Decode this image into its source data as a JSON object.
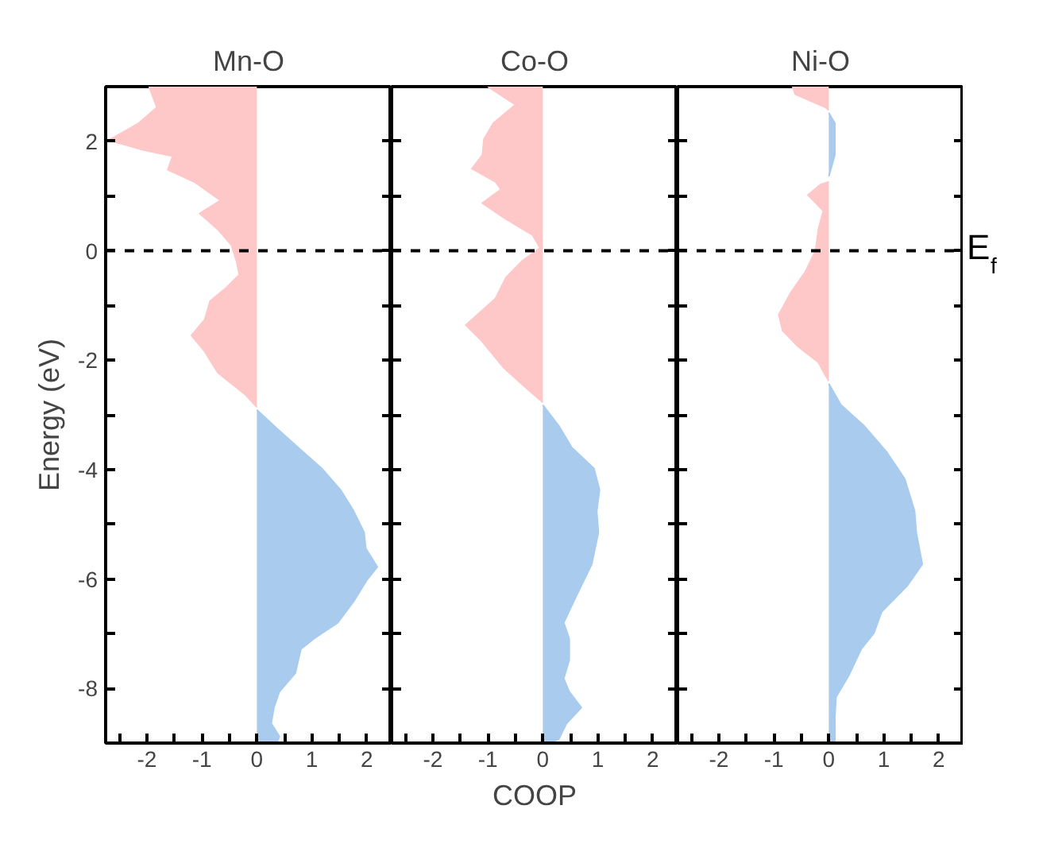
{
  "chart_data": [
    {
      "type": "area",
      "orientation": "horizontal",
      "title": "Mn-O",
      "ylabel": "Energy (eV)",
      "xlim": [
        -2.75,
        2.45
      ],
      "ylim": [
        -9,
        3
      ],
      "xticks": [
        {
          "value": -2.5,
          "label": null
        },
        -2,
        {
          "value": -1.5,
          "label": null
        },
        -1,
        {
          "value": -0.5,
          "label": null
        },
        0,
        {
          "value": 0.5,
          "label": null
        },
        1,
        {
          "value": 1.5,
          "label": null
        },
        2
      ],
      "yticks": [
        -8,
        {
          "value": -7,
          "label": null
        },
        -6,
        {
          "value": -5,
          "label": null
        },
        -4,
        {
          "value": -3,
          "label": null
        },
        -2,
        {
          "value": -1,
          "label": null
        },
        0,
        {
          "value": 1,
          "label": null
        },
        2
      ],
      "ref_lines": [
        {
          "axis": "y",
          "value": 0,
          "line_style": "dashed",
          "color": "#000000"
        }
      ],
      "series": [
        {
          "color": "#ffc8c8",
          "x": [
            3,
            2.62,
            2.33,
            2.02,
            1.84,
            1.73,
            1.48,
            1.26,
            0.92,
            0.68,
            0.39,
            0.1,
            -0.19,
            -0.44,
            -0.68,
            -0.92,
            -1.26,
            -1.55,
            -1.84,
            -2.23,
            -2.62,
            -2.86
          ],
          "values": [
            -1.96,
            -1.82,
            -2.15,
            -2.69,
            -2.06,
            -1.53,
            -1.62,
            -1.14,
            -0.66,
            -1.04,
            -0.71,
            -0.46,
            -0.37,
            -0.32,
            -0.56,
            -0.85,
            -0.95,
            -1.19,
            -0.95,
            -0.71,
            -0.22,
            0
          ]
        },
        {
          "color": "#a8cbee",
          "x": [
            -2.91,
            -3.2,
            -3.59,
            -3.98,
            -4.37,
            -4.76,
            -5.15,
            -5.44,
            -5.78,
            -6.02,
            -6.41,
            -6.8,
            -7.09,
            -7.28,
            -7.72,
            -8.06,
            -8.35,
            -8.64,
            -8.88,
            -9
          ],
          "values": [
            0,
            0.31,
            0.74,
            1.18,
            1.52,
            1.76,
            1.95,
            1.98,
            2.19,
            2.0,
            1.76,
            1.47,
            1.04,
            0.8,
            0.7,
            0.41,
            0.31,
            0.26,
            0.41,
            0.36
          ]
        }
      ]
    },
    {
      "type": "area",
      "orientation": "horizontal",
      "title": "Co-O",
      "xlabel": "COOP",
      "tick_labels": "x",
      "xlim": [
        -2.75,
        2.45
      ],
      "ylim": [
        -9,
        3
      ],
      "xticks": [
        {
          "value": -2.5,
          "label": null
        },
        -2,
        {
          "value": -1.5,
          "label": null
        },
        -1,
        {
          "value": -0.5,
          "label": null
        },
        0,
        {
          "value": 0.5,
          "label": null
        },
        1,
        {
          "value": 1.5,
          "label": null
        },
        2
      ],
      "yticks": [
        {
          "value": -8,
          "label": null
        },
        {
          "value": -7,
          "label": null
        },
        {
          "value": -6,
          "label": null
        },
        {
          "value": -5,
          "label": null
        },
        {
          "value": -4,
          "label": null
        },
        {
          "value": -3,
          "label": null
        },
        {
          "value": -2,
          "label": null
        },
        {
          "value": -1,
          "label": null
        },
        {
          "value": 0,
          "label": null
        },
        {
          "value": 1,
          "label": null
        },
        {
          "value": 2,
          "label": null
        }
      ],
      "ref_lines": [
        {
          "axis": "y",
          "value": 0,
          "line_style": "dashed",
          "color": "#000000"
        }
      ],
      "series": [
        {
          "color": "#ffc8c8",
          "x": [
            3,
            2.67,
            2.33,
            2.04,
            1.75,
            1.5,
            1.26,
            1.12,
            0.87,
            0.58,
            0.29,
            0.05,
            -0.19,
            -0.49,
            -0.87,
            -1.17,
            -1.36,
            -1.65,
            -2.14,
            -2.52,
            -2.77
          ],
          "values": [
            -1.0,
            -0.5,
            -0.9,
            -1.07,
            -1.1,
            -1.29,
            -0.86,
            -0.76,
            -1.1,
            -0.67,
            -0.19,
            -0.05,
            -0.38,
            -0.67,
            -0.86,
            -1.19,
            -1.4,
            -1.11,
            -0.71,
            -0.29,
            0
          ]
        },
        {
          "color": "#a8cbee",
          "x": [
            -2.82,
            -3.2,
            -3.59,
            -3.98,
            -4.37,
            -4.76,
            -5.15,
            -5.73,
            -6.12,
            -6.5,
            -6.8,
            -7.09,
            -7.48,
            -7.82,
            -8.06,
            -8.35,
            -8.64,
            -8.93,
            -9
          ],
          "values": [
            0,
            0.29,
            0.52,
            0.93,
            1.03,
            0.98,
            1.01,
            0.89,
            0.7,
            0.52,
            0.38,
            0.48,
            0.48,
            0.38,
            0.48,
            0.7,
            0.43,
            0.29,
            0.1
          ]
        }
      ]
    },
    {
      "type": "area",
      "orientation": "horizontal",
      "title": "Ni-O",
      "tick_labels": "x",
      "xlim": [
        -2.75,
        2.45
      ],
      "ylim": [
        -9,
        3
      ],
      "xticks": [
        {
          "value": -2.5,
          "label": null
        },
        -2,
        {
          "value": -1.5,
          "label": null
        },
        -1,
        {
          "value": -0.5,
          "label": null
        },
        0,
        {
          "value": 0.5,
          "label": null
        },
        1,
        {
          "value": 1.5,
          "label": null
        },
        2
      ],
      "yticks": [
        {
          "value": -8,
          "label": null
        },
        {
          "value": -7,
          "label": null
        },
        {
          "value": -6,
          "label": null
        },
        {
          "value": -5,
          "label": null
        },
        {
          "value": -4,
          "label": null
        },
        {
          "value": -3,
          "label": null
        },
        {
          "value": -2,
          "label": null
        },
        {
          "value": -1,
          "label": null
        },
        {
          "value": 0,
          "label": null
        },
        {
          "value": 1,
          "label": null
        },
        {
          "value": 2,
          "label": null
        }
      ],
      "ref_lines": [
        {
          "axis": "y",
          "value": 0,
          "label": "E$_{f}$",
          "line_style": "dashed",
          "color": "#000000"
        }
      ],
      "series": [
        {
          "color": "#ffc8c8",
          "x": [
            3,
            2.86,
            2.62,
            2.57
          ],
          "values": [
            -0.66,
            -0.61,
            -0.06,
            0
          ]
        },
        {
          "color": "#a8cbee",
          "x": [
            2.52,
            2.33,
            1.75,
            1.36
          ],
          "values": [
            0,
            0.11,
            0.11,
            0
          ]
        },
        {
          "color": "#ffc8c8",
          "x": [
            1.26,
            1.21,
            1.02,
            0.73,
            0.39,
            0,
            -0.39,
            -0.78,
            -1.17,
            -1.46,
            -1.75,
            -2.04,
            -2.28,
            -2.38
          ],
          "values": [
            0,
            -0.15,
            -0.38,
            -0.1,
            -0.19,
            -0.24,
            -0.43,
            -0.7,
            -0.91,
            -0.84,
            -0.56,
            -0.19,
            -0.06,
            0
          ]
        },
        {
          "color": "#a8cbee",
          "x": [
            -2.43,
            -2.82,
            -3.2,
            -3.69,
            -4.17,
            -4.76,
            -5.15,
            -5.73,
            -6.12,
            -6.6,
            -6.99,
            -7.28,
            -7.77,
            -8.16,
            -8.54,
            -9
          ],
          "values": [
            0,
            0.22,
            0.64,
            1.06,
            1.38,
            1.56,
            1.59,
            1.7,
            1.43,
            0.96,
            0.82,
            0.59,
            0.36,
            0.13,
            0.11,
            0.11
          ]
        }
      ]
    }
  ]
}
